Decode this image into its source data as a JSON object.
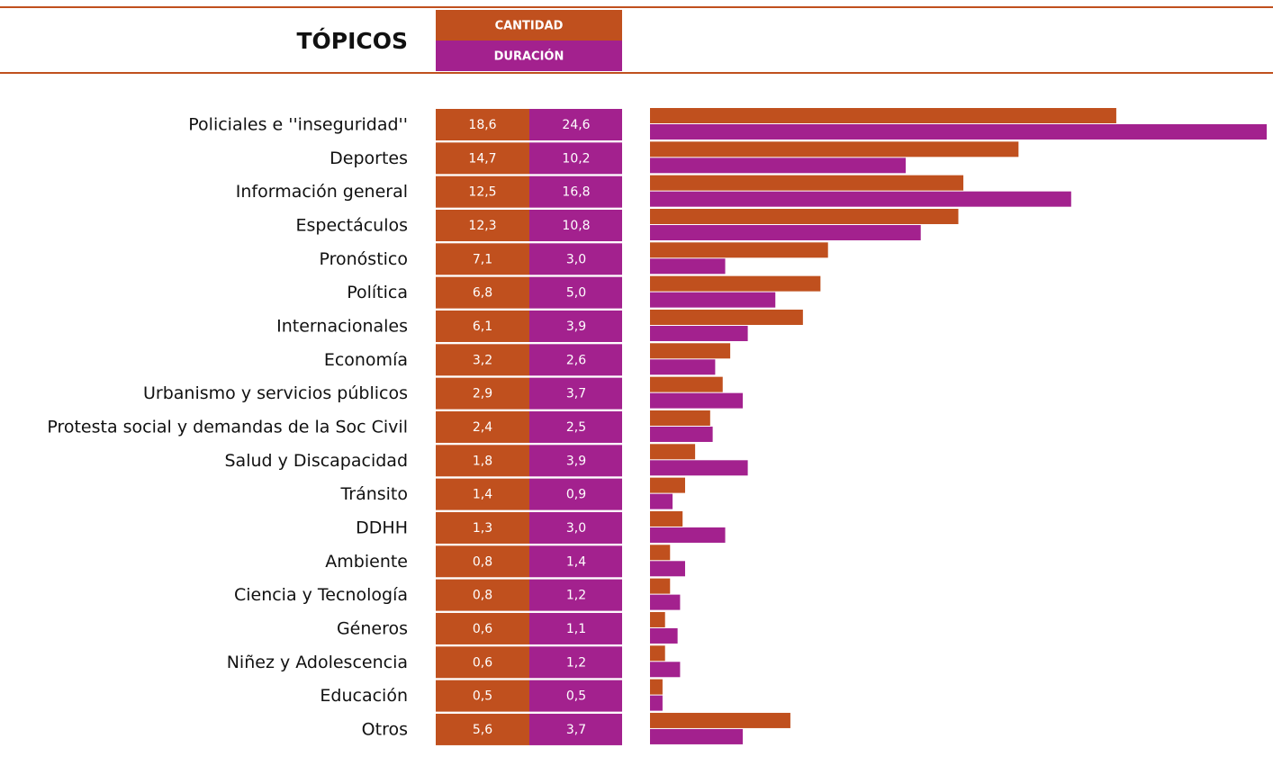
{
  "chart_data": {
    "type": "bar",
    "title": "TÓPICOS",
    "categories": [
      "Policiales e ''inseguridad''",
      "Deportes",
      "Información general",
      "Espectáculos",
      "Pronóstico",
      "Política",
      "Internacionales",
      "Economía",
      "Urbanismo y servicios públicos",
      "Protesta social y demandas de la Soc Civil",
      "Salud y Discapacidad",
      "Tránsito",
      "DDHH",
      "Ambiente",
      "Ciencia y Tecnología",
      "Géneros",
      "Niñez y Adolescencia",
      "Educación",
      "Otros"
    ],
    "series": [
      {
        "name": "CANTIDAD",
        "color": "#c0501e",
        "values": [
          18.6,
          14.7,
          12.5,
          12.3,
          7.1,
          6.8,
          6.1,
          3.2,
          2.9,
          2.4,
          1.8,
          1.4,
          1.3,
          0.8,
          0.8,
          0.6,
          0.6,
          0.5,
          5.6
        ],
        "value_labels": [
          "18,6",
          "14,7",
          "12,5",
          "12,3",
          "7,1",
          "6,8",
          "6,1",
          "3,2",
          "2,9",
          "2,4",
          "1,8",
          "1,4",
          "1,3",
          "0,8",
          "0,8",
          "0,6",
          "0,6",
          "0,5",
          "5,6"
        ]
      },
      {
        "name": "DURACIÓN",
        "color": "#a3218e",
        "values": [
          24.6,
          10.2,
          16.8,
          10.8,
          3.0,
          5.0,
          3.9,
          2.6,
          3.7,
          2.5,
          3.9,
          0.9,
          3.0,
          1.4,
          1.2,
          1.1,
          1.2,
          0.5,
          3.7
        ],
        "value_labels": [
          "24,6",
          "10,2",
          "16,8",
          "10,8",
          "3,0",
          "5,0",
          "3,9",
          "2,6",
          "3,7",
          "2,5",
          "3,9",
          "0,9",
          "3,0",
          "1,4",
          "1,2",
          "1,1",
          "1,2",
          "0,5",
          "3,7"
        ]
      }
    ]
  }
}
